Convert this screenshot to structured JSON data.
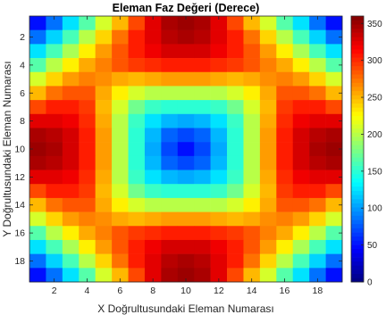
{
  "chart_data": {
    "type": "heatmap",
    "title": "Eleman Faz Değeri (Derece)",
    "xlabel": "X Doğrultusundaki Eleman Numarası",
    "ylabel": "Y Doğrultusundaki Eleman Numarası",
    "x_ticks": [
      "2",
      "4",
      "6",
      "8",
      "10",
      "12",
      "14",
      "16",
      "18"
    ],
    "y_ticks": [
      "2",
      "4",
      "6",
      "8",
      "10",
      "12",
      "14",
      "16",
      "18"
    ],
    "colorbar_ticks": [
      "0",
      "50",
      "100",
      "150",
      "200",
      "250",
      "300",
      "350"
    ],
    "colormap": "jet",
    "clim": [
      0,
      360
    ],
    "grid": {
      "rows": 19,
      "cols": 19,
      "center": [
        10,
        10
      ]
    },
    "values": [
      [
        50,
        85,
        125,
        165,
        210,
        250,
        290,
        325,
        345,
        350,
        345,
        325,
        290,
        250,
        210,
        165,
        125,
        85,
        50
      ],
      [
        85,
        120,
        160,
        200,
        240,
        275,
        305,
        325,
        340,
        345,
        340,
        325,
        305,
        275,
        240,
        200,
        160,
        120,
        85
      ],
      [
        125,
        160,
        195,
        230,
        260,
        285,
        305,
        320,
        330,
        330,
        330,
        320,
        305,
        285,
        260,
        230,
        195,
        160,
        125
      ],
      [
        165,
        200,
        230,
        255,
        270,
        285,
        295,
        300,
        305,
        305,
        305,
        300,
        295,
        285,
        270,
        255,
        230,
        200,
        165
      ],
      [
        210,
        240,
        260,
        270,
        265,
        255,
        250,
        255,
        260,
        260,
        260,
        255,
        250,
        255,
        265,
        270,
        260,
        240,
        210
      ],
      [
        250,
        275,
        285,
        285,
        255,
        230,
        210,
        200,
        200,
        200,
        200,
        200,
        210,
        230,
        255,
        285,
        285,
        275,
        250
      ],
      [
        290,
        305,
        305,
        295,
        250,
        210,
        175,
        155,
        150,
        150,
        150,
        155,
        175,
        210,
        250,
        295,
        305,
        305,
        290
      ],
      [
        325,
        325,
        320,
        300,
        255,
        200,
        155,
        125,
        110,
        105,
        110,
        125,
        155,
        200,
        255,
        300,
        320,
        325,
        325
      ],
      [
        345,
        340,
        330,
        305,
        260,
        200,
        150,
        110,
        80,
        70,
        80,
        110,
        150,
        200,
        260,
        305,
        330,
        340,
        345
      ],
      [
        350,
        345,
        330,
        305,
        260,
        200,
        150,
        105,
        70,
        50,
        70,
        105,
        150,
        200,
        260,
        305,
        330,
        345,
        350
      ],
      [
        345,
        340,
        330,
        305,
        260,
        200,
        150,
        110,
        80,
        70,
        80,
        110,
        150,
        200,
        260,
        305,
        330,
        340,
        345
      ],
      [
        325,
        325,
        320,
        300,
        255,
        200,
        155,
        125,
        110,
        105,
        110,
        125,
        155,
        200,
        255,
        300,
        320,
        325,
        325
      ],
      [
        290,
        305,
        305,
        295,
        250,
        210,
        175,
        155,
        150,
        150,
        150,
        155,
        175,
        210,
        250,
        295,
        305,
        305,
        290
      ],
      [
        250,
        275,
        285,
        285,
        255,
        230,
        210,
        200,
        200,
        200,
        200,
        200,
        210,
        230,
        255,
        285,
        285,
        275,
        250
      ],
      [
        210,
        240,
        260,
        270,
        265,
        255,
        250,
        255,
        260,
        260,
        260,
        255,
        250,
        255,
        265,
        270,
        260,
        240,
        210
      ],
      [
        165,
        200,
        230,
        255,
        270,
        285,
        295,
        300,
        305,
        305,
        305,
        300,
        295,
        285,
        270,
        255,
        230,
        200,
        165
      ],
      [
        125,
        160,
        195,
        230,
        260,
        285,
        305,
        320,
        330,
        330,
        330,
        320,
        305,
        285,
        260,
        230,
        195,
        160,
        125
      ],
      [
        85,
        120,
        160,
        200,
        240,
        275,
        305,
        325,
        340,
        345,
        340,
        325,
        305,
        275,
        240,
        200,
        160,
        120,
        85
      ],
      [
        50,
        85,
        125,
        165,
        210,
        250,
        290,
        325,
        345,
        350,
        345,
        325,
        290,
        250,
        210,
        165,
        125,
        85,
        50
      ]
    ]
  }
}
